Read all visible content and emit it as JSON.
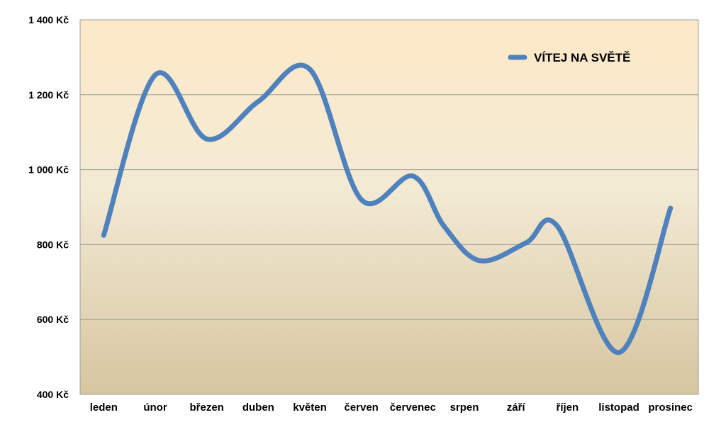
{
  "chart_data": {
    "type": "line",
    "title": "",
    "xlabel": "",
    "ylabel": "",
    "categories": [
      "leden",
      "únor",
      "březen",
      "duben",
      "květen",
      "červen",
      "červenec",
      "srpen",
      "září",
      "říjen",
      "listopad",
      "prosinec"
    ],
    "series": [
      {
        "name": "VÍTEJ NA SVĚTĚ",
        "values": [
          825,
          1253,
          1082,
          1182,
          1268,
          920,
          983,
          850,
          757,
          805,
          850,
          512,
          897
        ],
        "x": [
          0,
          1,
          2,
          3,
          4,
          5,
          6,
          6.6,
          7.3,
          8.2,
          8.8,
          10,
          11
        ]
      }
    ],
    "ylim": [
      400,
      1400
    ],
    "yticks": [
      400,
      600,
      800,
      1000,
      1200,
      1400
    ],
    "ytick_labels": [
      "400 Kč",
      "600 Kč",
      "800 Kč",
      "1 000 Kč",
      "1 200 Kč",
      "1 400 Kč"
    ],
    "grid": true,
    "legend": "top-right",
    "line_color": "#4f81bd",
    "background_top": "#fde9c8",
    "background_bottom": "#d6c6a0",
    "gridline_color": "#9c9c9c"
  }
}
